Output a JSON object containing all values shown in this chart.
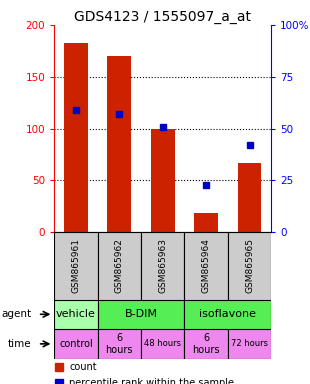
{
  "title": "GDS4123 / 1555097_a_at",
  "samples": [
    "GSM865961",
    "GSM865962",
    "GSM865963",
    "GSM865964",
    "GSM865965"
  ],
  "counts": [
    183,
    170,
    100,
    19,
    67
  ],
  "percentiles": [
    59,
    57,
    51,
    23,
    42
  ],
  "ylim_left": [
    0,
    200
  ],
  "ylim_right": [
    0,
    100
  ],
  "yticks_left": [
    0,
    50,
    100,
    150,
    200
  ],
  "yticks_right": [
    0,
    25,
    50,
    75,
    100
  ],
  "ytick_labels_right": [
    "0",
    "25",
    "50",
    "75",
    "100%"
  ],
  "bar_color": "#cc2200",
  "dot_color": "#0000cc",
  "sample_bg_color": "#cccccc",
  "agent_cells": [
    {
      "label": "vehicle",
      "start": 0,
      "end": 1,
      "color": "#aaffaa"
    },
    {
      "label": "B-DIM",
      "start": 1,
      "end": 3,
      "color": "#55ee55"
    },
    {
      "label": "isoflavone",
      "start": 3,
      "end": 5,
      "color": "#55ee55"
    }
  ],
  "time_cells": [
    {
      "label": "control",
      "start": 0,
      "end": 1,
      "color": "#ee88ee",
      "fontsize": 7
    },
    {
      "label": "6\nhours",
      "start": 1,
      "end": 2,
      "color": "#ee88ee",
      "fontsize": 7
    },
    {
      "label": "48 hours",
      "start": 2,
      "end": 3,
      "color": "#ee88ee",
      "fontsize": 6
    },
    {
      "label": "6\nhours",
      "start": 3,
      "end": 4,
      "color": "#ee88ee",
      "fontsize": 7
    },
    {
      "label": "72 hours",
      "start": 4,
      "end": 5,
      "color": "#ee88ee",
      "fontsize": 6
    }
  ],
  "title_fontsize": 10,
  "tick_fontsize": 7.5,
  "sample_fontsize": 6.5,
  "agent_fontsize": 8,
  "legend_bar_color": "#cc2200",
  "legend_dot_color": "#0000cc"
}
